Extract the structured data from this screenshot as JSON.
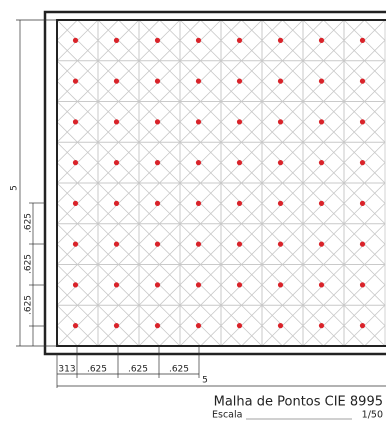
{
  "title": "Malha de Pontos CIE 8995",
  "scale": {
    "label": "Escala",
    "value": "1/50"
  },
  "dimensions": {
    "vertical_total": "5",
    "vertical_segments": [
      ".625",
      ".625",
      ".625"
    ],
    "horizontal_first": "313",
    "horizontal_segments": [
      ".625",
      ".625",
      ".625"
    ],
    "horizontal_total": "5"
  }
}
